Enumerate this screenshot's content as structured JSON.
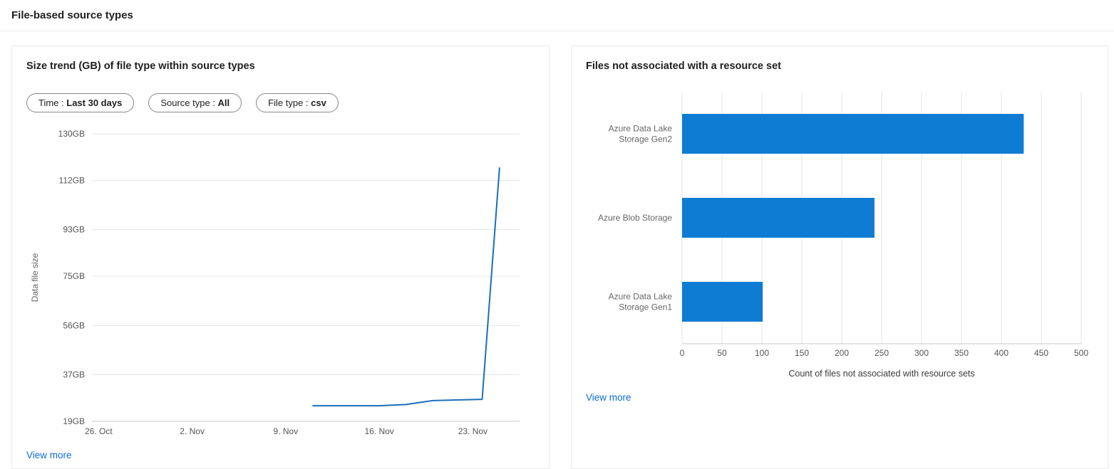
{
  "page": {
    "title": "File-based source types"
  },
  "left_card": {
    "title": "Size trend (GB) of file type within source types",
    "filters": [
      {
        "label": "Time :",
        "value": "Last 30 days"
      },
      {
        "label": "Source type :",
        "value": "All"
      },
      {
        "label": "File type :",
        "value": "csv"
      }
    ],
    "view_more": "View more"
  },
  "right_card": {
    "title": "Files not associated with a resource set",
    "view_more": "View more"
  },
  "colors": {
    "bar_blue": "#0f7cd4",
    "line_blue": "#1b6fba",
    "link_blue": "#0b6cd4",
    "grid": "#e6e6e6",
    "axis": "#c9c9c9",
    "tick_text": "#555555",
    "label_text": "#666666",
    "axis_title_text": "#3b3a39"
  },
  "chart_data": [
    {
      "type": "line",
      "title": "Size trend (GB) of file type within source types",
      "ylabel": "Data file size",
      "xlabel": "",
      "grid": "horizontal",
      "legend": "none",
      "y_domain": [
        19,
        130
      ],
      "x_domain": [
        -0.5,
        31.5
      ],
      "y_ticks": {
        "labels": [
          "19GB",
          "37GB",
          "56GB",
          "75GB",
          "93GB",
          "112GB",
          "130GB"
        ],
        "values": [
          19,
          37,
          56,
          75,
          93,
          112,
          130
        ]
      },
      "x_ticks": {
        "labels": [
          "26. Oct",
          "2. Nov",
          "9. Nov",
          "16. Nov",
          "23. Nov"
        ],
        "days": [
          0,
          7,
          14,
          21,
          28
        ]
      },
      "series": [
        {
          "name": "csv",
          "points": [
            {
              "x": 16,
              "y": 25
            },
            {
              "x": 21,
              "y": 25
            },
            {
              "x": 23,
              "y": 25.5
            },
            {
              "x": 25,
              "y": 27
            },
            {
              "x": 28.7,
              "y": 27.5
            },
            {
              "x": 30,
              "y": 117
            }
          ]
        }
      ]
    },
    {
      "type": "bar",
      "orientation": "horizontal",
      "title": "Files not associated with a resource set",
      "xlabel": "Count of files not associated with resource sets",
      "grid": "vertical",
      "xlim": [
        0,
        500
      ],
      "x_ticks": [
        0,
        50,
        100,
        150,
        200,
        250,
        300,
        350,
        400,
        450,
        500
      ],
      "categories": [
        "Azure Data Lake Storage Gen2",
        "Azure Blob Storage",
        "Azure Data Lake Storage Gen1"
      ],
      "category_label_lines": [
        [
          "Azure Data Lake",
          "Storage Gen2"
        ],
        [
          "Azure Blob Storage"
        ],
        [
          "Azure Data Lake",
          "Storage Gen1"
        ]
      ],
      "values": [
        428,
        241,
        101
      ]
    }
  ]
}
